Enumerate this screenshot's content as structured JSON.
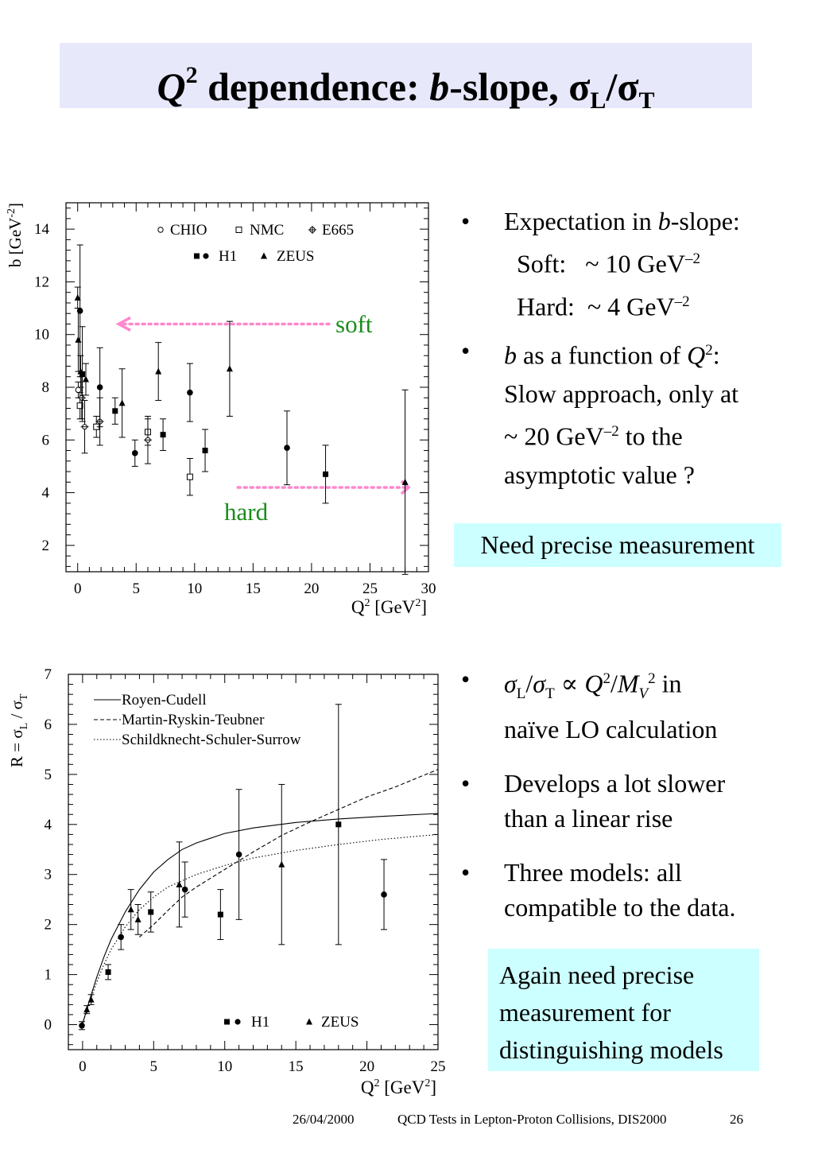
{
  "slide": {
    "title_q": "Q",
    "title_q_exp": "2",
    "title_mid": " dependence: ",
    "title_b": "b",
    "title_rest": "-slope, σ",
    "title_sub_l": "L",
    "title_slash": "/σ",
    "title_sub_t": "T"
  },
  "bullets_top": {
    "b1_pre": "Expectation in ",
    "b1_b": "b",
    "b1_post": "-slope:",
    "soft_label": "Soft:",
    "soft_value": "~ 10 GeV",
    "soft_exp": "–2",
    "hard_label": "Hard:",
    "hard_value": "~ 4 GeV",
    "hard_exp": "–2",
    "b2_b": "b",
    "b2_mid": " as a function of ",
    "b2_q": "Q",
    "b2_q_exp": "2",
    "b2_colon": ":",
    "b2_line2": "Slow approach, only at",
    "b2_line3_pre": "~ 20 GeV",
    "b2_line3_exp": "–2",
    "b2_line3_post": " to the",
    "b2_line4": "asymptotic value ?"
  },
  "callout_top": "Need precise measurement",
  "bullets_bottom": {
    "b1_sigma_l": "σ",
    "b1_l": "L",
    "b1_slash": "/",
    "b1_sigma_t": "σ",
    "b1_t": "T",
    "b1_prop": " ∝ ",
    "b1_q": "Q",
    "b1_q_exp": "2",
    "b1_div": "/",
    "b1_m": "M",
    "b1_m_sub": "V",
    "b1_m_exp": "2",
    "b1_in": " in",
    "b1_line2": "naïve LO calculation",
    "b2_line1": "Develops a lot slower",
    "b2_line2": "than a linear rise",
    "b3_line1": "Three models: all",
    "b3_line2": "compatible to the data."
  },
  "callout_bottom": {
    "line1": "Again need precise",
    "line2": "measurement for",
    "line3": "distinguishing models"
  },
  "footer": {
    "date": "26/04/2000",
    "conference": "QCD Tests in Lepton-Proton Collisions, DIS2000",
    "page": "26"
  },
  "chart_data": [
    {
      "type": "scatter",
      "xlabel_main": "Q",
      "xlabel_exp": "2",
      "xlabel_unit": " [GeV",
      "xlabel_unit_exp": "2",
      "xlabel_close": "]",
      "ylabel_main": "b  [GeV",
      "ylabel_exp": "-2",
      "ylabel_close": "]",
      "xlim": [
        -1,
        30
      ],
      "ylim": [
        1,
        15
      ],
      "xticks": [
        "0",
        "5",
        "10",
        "15",
        "20",
        "25",
        "30"
      ],
      "yticks": [
        "2",
        "4",
        "6",
        "8",
        "10",
        "12",
        "14"
      ],
      "legend_row1": [
        "CHIO",
        "NMC",
        "E665"
      ],
      "legend_row2": [
        "H1",
        "ZEUS"
      ],
      "annotations": {
        "soft": "soft",
        "hard": "hard",
        "soft_level": 10.4,
        "hard_level": 4.2
      },
      "series": [
        {
          "name": "CHIO",
          "marker": "open-circle",
          "points": [
            [
              0.05,
              7.9,
              0.3
            ]
          ]
        },
        {
          "name": "NMC",
          "marker": "open-square",
          "points": [
            [
              0.2,
              7.3,
              0.5
            ],
            [
              1.6,
              6.5,
              0.4
            ],
            [
              6.0,
              6.3,
              0.5
            ],
            [
              9.6,
              4.6,
              0.7
            ]
          ]
        },
        {
          "name": "E665",
          "marker": "open-cross",
          "points": [
            [
              0.35,
              7.6,
              0.8
            ],
            [
              0.6,
              6.5,
              1.0
            ],
            [
              1.9,
              6.7,
              0.9
            ],
            [
              6.0,
              6.0,
              0.9
            ]
          ]
        },
        {
          "name": "H1",
          "marker": "filled",
          "points": [
            [
              0.2,
              10.9,
              2.5
            ],
            [
              0.4,
              8.5,
              1.8
            ],
            [
              1.9,
              8.0,
              1.5
            ],
            [
              3.2,
              7.1,
              0.5
            ],
            [
              4.9,
              5.5,
              0.5
            ],
            [
              7.3,
              6.2,
              0.6
            ],
            [
              9.6,
              7.8,
              1.1
            ],
            [
              10.9,
              5.6,
              0.8
            ],
            [
              17.9,
              5.7,
              1.4
            ],
            [
              21.2,
              4.7,
              1.1
            ]
          ]
        },
        {
          "name": "ZEUS",
          "marker": "filled-triangle",
          "points": [
            [
              0.0,
              11.4,
              0.4
            ],
            [
              0.05,
              9.8,
              1.2
            ],
            [
              0.25,
              8.6,
              0.6
            ],
            [
              0.7,
              8.3,
              0.6
            ],
            [
              3.8,
              7.4,
              1.3
            ],
            [
              6.9,
              8.6,
              1.1
            ],
            [
              13.0,
              8.7,
              1.8
            ],
            [
              28.0,
              4.4,
              3.5
            ]
          ]
        }
      ]
    },
    {
      "type": "line",
      "xlabel_main": "Q",
      "xlabel_exp": "2",
      "xlabel_unit": "  [GeV",
      "xlabel_unit_exp": "2",
      "xlabel_close": "]",
      "ylabel_main": "R = σ",
      "ylabel_l": "L",
      "ylabel_mid": " / σ",
      "ylabel_t": "T",
      "xlim": [
        -1,
        25
      ],
      "ylim": [
        -0.5,
        7
      ],
      "xticks": [
        "0",
        "5",
        "10",
        "15",
        "20",
        "25"
      ],
      "yticks": [
        "0",
        "1",
        "2",
        "3",
        "4",
        "5",
        "6",
        "7"
      ],
      "legend_lines": [
        "Royen-Cudell",
        "Martin-Ryskin-Teubner",
        "Schildknecht-Schuler-Surrow"
      ],
      "legend_markers": [
        "H1",
        "ZEUS"
      ],
      "curves": [
        {
          "name": "Royen-Cudell",
          "style": "solid",
          "points": [
            [
              0,
              0.02
            ],
            [
              0.5,
              0.5
            ],
            [
              1,
              0.95
            ],
            [
              1.5,
              1.35
            ],
            [
              2,
              1.7
            ],
            [
              3,
              2.25
            ],
            [
              4,
              2.7
            ],
            [
              5,
              3.05
            ],
            [
              6,
              3.3
            ],
            [
              7,
              3.5
            ],
            [
              8,
              3.63
            ],
            [
              10,
              3.82
            ],
            [
              12,
              3.93
            ],
            [
              15,
              4.04
            ],
            [
              18,
              4.11
            ],
            [
              21,
              4.16
            ],
            [
              25,
              4.22
            ]
          ]
        },
        {
          "name": "Martin-Ryskin-Teubner",
          "style": "dashed",
          "points": [
            [
              4,
              1.75
            ],
            [
              5,
              2.0
            ],
            [
              6,
              2.28
            ],
            [
              7,
              2.55
            ],
            [
              8,
              2.75
            ],
            [
              10,
              3.1
            ],
            [
              12,
              3.45
            ],
            [
              14,
              3.78
            ],
            [
              16,
              4.05
            ],
            [
              18,
              4.3
            ],
            [
              20,
              4.55
            ],
            [
              22,
              4.75
            ],
            [
              25,
              5.1
            ]
          ]
        },
        {
          "name": "Schildknecht-Schuler-Surrow",
          "style": "dotted",
          "points": [
            [
              0,
              0.02
            ],
            [
              0.5,
              0.45
            ],
            [
              1,
              0.85
            ],
            [
              1.5,
              1.2
            ],
            [
              2,
              1.5
            ],
            [
              3,
              1.95
            ],
            [
              4,
              2.3
            ],
            [
              5,
              2.55
            ],
            [
              6,
              2.75
            ],
            [
              8,
              3.0
            ],
            [
              10,
              3.18
            ],
            [
              12,
              3.33
            ],
            [
              15,
              3.48
            ],
            [
              18,
              3.6
            ],
            [
              21,
              3.7
            ],
            [
              25,
              3.8
            ]
          ]
        }
      ],
      "series": [
        {
          "name": "H1",
          "marker": "filled",
          "points": [
            [
              -0.05,
              -0.02,
              0.08
            ],
            [
              1.8,
              1.05,
              0.15
            ],
            [
              2.7,
              1.75,
              0.25
            ],
            [
              4.8,
              2.25,
              0.4
            ],
            [
              7.2,
              2.7,
              0.55
            ],
            [
              9.7,
              2.2,
              0.5
            ],
            [
              11.0,
              3.4,
              1.3
            ],
            [
              18.0,
              4.0,
              2.4
            ],
            [
              21.2,
              2.6,
              0.7
            ]
          ]
        },
        {
          "name": "ZEUS",
          "marker": "filled-triangle",
          "points": [
            [
              0.3,
              0.3,
              0.08
            ],
            [
              0.6,
              0.5,
              0.1
            ],
            [
              3.4,
              2.3,
              0.4
            ],
            [
              3.9,
              2.1,
              0.3
            ],
            [
              6.8,
              2.8,
              0.85
            ],
            [
              14.0,
              3.2,
              1.6
            ]
          ]
        }
      ]
    }
  ]
}
